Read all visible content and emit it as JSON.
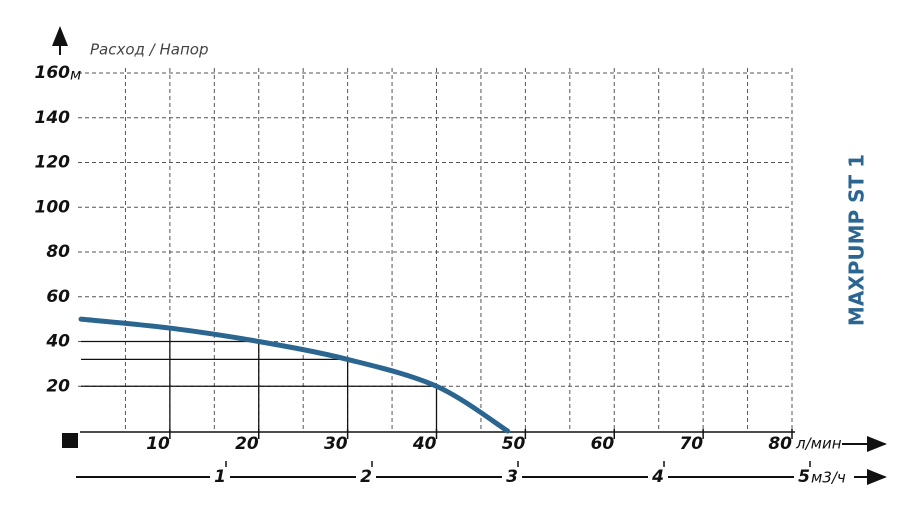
{
  "chart_data": {
    "type": "line",
    "title": "MAXPUMP ST 1",
    "subtitle": "Расход / Напор",
    "y_unit": "м",
    "x_unit": "л/мин",
    "x2_unit": "м3/ч",
    "x": [
      0,
      10,
      20,
      30,
      40,
      48
    ],
    "values": [
      50,
      46,
      40,
      32,
      20,
      0
    ],
    "color": "#2a6690",
    "xlim": [
      0,
      80
    ],
    "xticks": [
      10,
      20,
      30,
      40,
      50,
      60,
      70,
      80
    ],
    "ylim": [
      0,
      160
    ],
    "yticks": [
      20,
      40,
      60,
      80,
      100,
      120,
      140,
      160
    ],
    "x2lim": [
      0,
      5.5
    ],
    "x2ticks": [
      1,
      2,
      3,
      4,
      5
    ],
    "grid": true
  }
}
